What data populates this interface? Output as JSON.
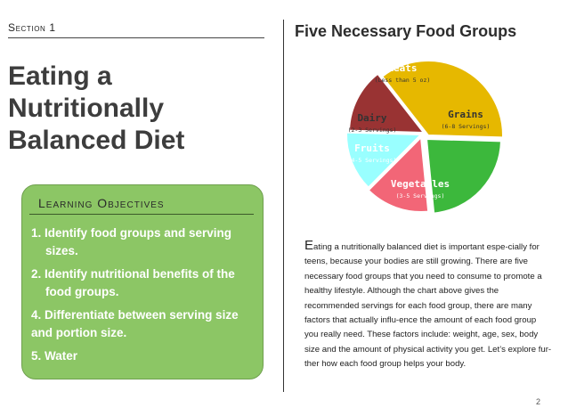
{
  "header": {
    "section_label": "Section 1"
  },
  "title": {
    "text": "Eating a Nutritionally Balanced Diet"
  },
  "objectives": {
    "heading": "Learning Objectives",
    "items": [
      "1. Identify food groups and serving sizes.",
      "2. Identify nutritional benefits of the food groups.",
      "4. Differentiate between serving size and portion size.",
      "5. Water"
    ]
  },
  "chart_title": "Five Necessary Food Groups",
  "chart_data": {
    "type": "pie",
    "title": "Five Necessary Food Groups",
    "slices": [
      {
        "label": "Grains",
        "note": "(6-8 Servings)",
        "share": 0.36,
        "color": "#e6b800"
      },
      {
        "label": "Vegetables",
        "note": "(3-5 Servings)",
        "share": 0.23,
        "color": "#3cb83c"
      },
      {
        "label": "Fruits",
        "note": "(4-5 Servings)",
        "share": 0.14,
        "color": "#f26677"
      },
      {
        "label": "Dairy",
        "note": "(2-3 Servings)",
        "share": 0.13,
        "color": "#99ffff"
      },
      {
        "label": "Meats",
        "note": "(Less than 5 oz)",
        "share": 0.14,
        "color": "#993333"
      }
    ]
  },
  "body": {
    "dropcap": "E",
    "text": "ating a nutritionally balanced diet is important espe-cially for teens, because your bodies are still growing. There are five necessary food groups that you need to consume to promote a healthy lifestyle. Although the chart above gives the recommended servings for each food group, there are many factors that actually influ-ence the amount of each food group you really need. These factors include: weight, age, sex, body size and the amount of physical activity you get. Let’s explore fur-ther how each food group helps your body."
  },
  "footer": {
    "page_number": "2"
  }
}
